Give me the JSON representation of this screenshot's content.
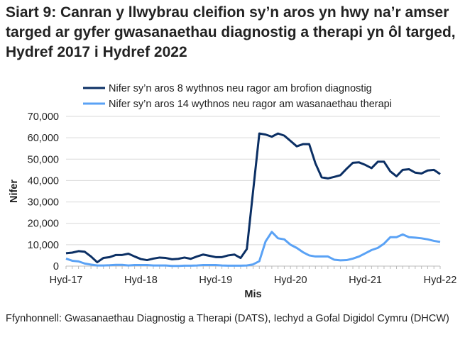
{
  "title": "Siart 9: Canran y llwybrau cleifion sy’n aros yn hwy na’r amser targed ar gyfer gwasanaethau diagnostig a therapi yn ôl targed, Hydref 2017 i Hydref 2022",
  "source": "Ffynhonnell: Gwasanaethau Diagnostig a Therapi (DATS), Iechyd a Gofal Digidol Cymru (DHCW)",
  "chart_data": {
    "type": "line",
    "xlabel": "Mis",
    "ylabel": "Nifer",
    "ylim": [
      0,
      70000
    ],
    "yticks": [
      0,
      10000,
      20000,
      30000,
      40000,
      50000,
      60000,
      70000
    ],
    "ytick_labels": [
      "0",
      "10,000",
      "20,000",
      "30,000",
      "40,000",
      "50,000",
      "60,000",
      "70,000"
    ],
    "xtick_labels": [
      "Hyd-17",
      "Hyd-18",
      "Hyd-19",
      "Hyd-20",
      "Hyd-21",
      "Hyd-22"
    ],
    "x_start": "2017-10",
    "x_end": "2022-10",
    "grid": true,
    "legend_position": "top",
    "series": [
      {
        "name": "Nifer sy’n aros 8 wythnos neu ragor am brofion diagnostig",
        "color": "#0b2f64",
        "values": [
          6000,
          6300,
          7000,
          6700,
          4500,
          1800,
          3800,
          4200,
          5200,
          5200,
          5800,
          4500,
          3300,
          2800,
          3500,
          4000,
          3800,
          3200,
          3400,
          4000,
          3400,
          4500,
          5400,
          4800,
          4200,
          4200,
          5000,
          5400,
          3800,
          8000,
          35000,
          62000,
          61500,
          60500,
          62000,
          61000,
          58500,
          56000,
          57000,
          57000,
          48000,
          41500,
          41000,
          41700,
          42500,
          45500,
          48300,
          48500,
          47300,
          45800,
          48800,
          48800,
          44300,
          42000,
          45000,
          45300,
          43700,
          43300,
          44700,
          45000,
          43000
        ]
      },
      {
        "name": "Nifer sy’n aros 14 wythnos neu ragor am wasanaethau therapi",
        "color": "#5aa2f5",
        "values": [
          3500,
          2500,
          2200,
          1200,
          700,
          300,
          300,
          400,
          600,
          600,
          300,
          500,
          500,
          500,
          300,
          300,
          300,
          100,
          100,
          200,
          200,
          300,
          500,
          500,
          500,
          300,
          200,
          200,
          200,
          300,
          800,
          2300,
          11500,
          16000,
          13000,
          12500,
          10000,
          8500,
          6500,
          5000,
          4500,
          4500,
          4500,
          3000,
          2700,
          2800,
          3500,
          4500,
          6000,
          7500,
          8500,
          10500,
          13500,
          13500,
          14800,
          13500,
          13300,
          13000,
          12500,
          11800,
          11300
        ]
      }
    ]
  }
}
